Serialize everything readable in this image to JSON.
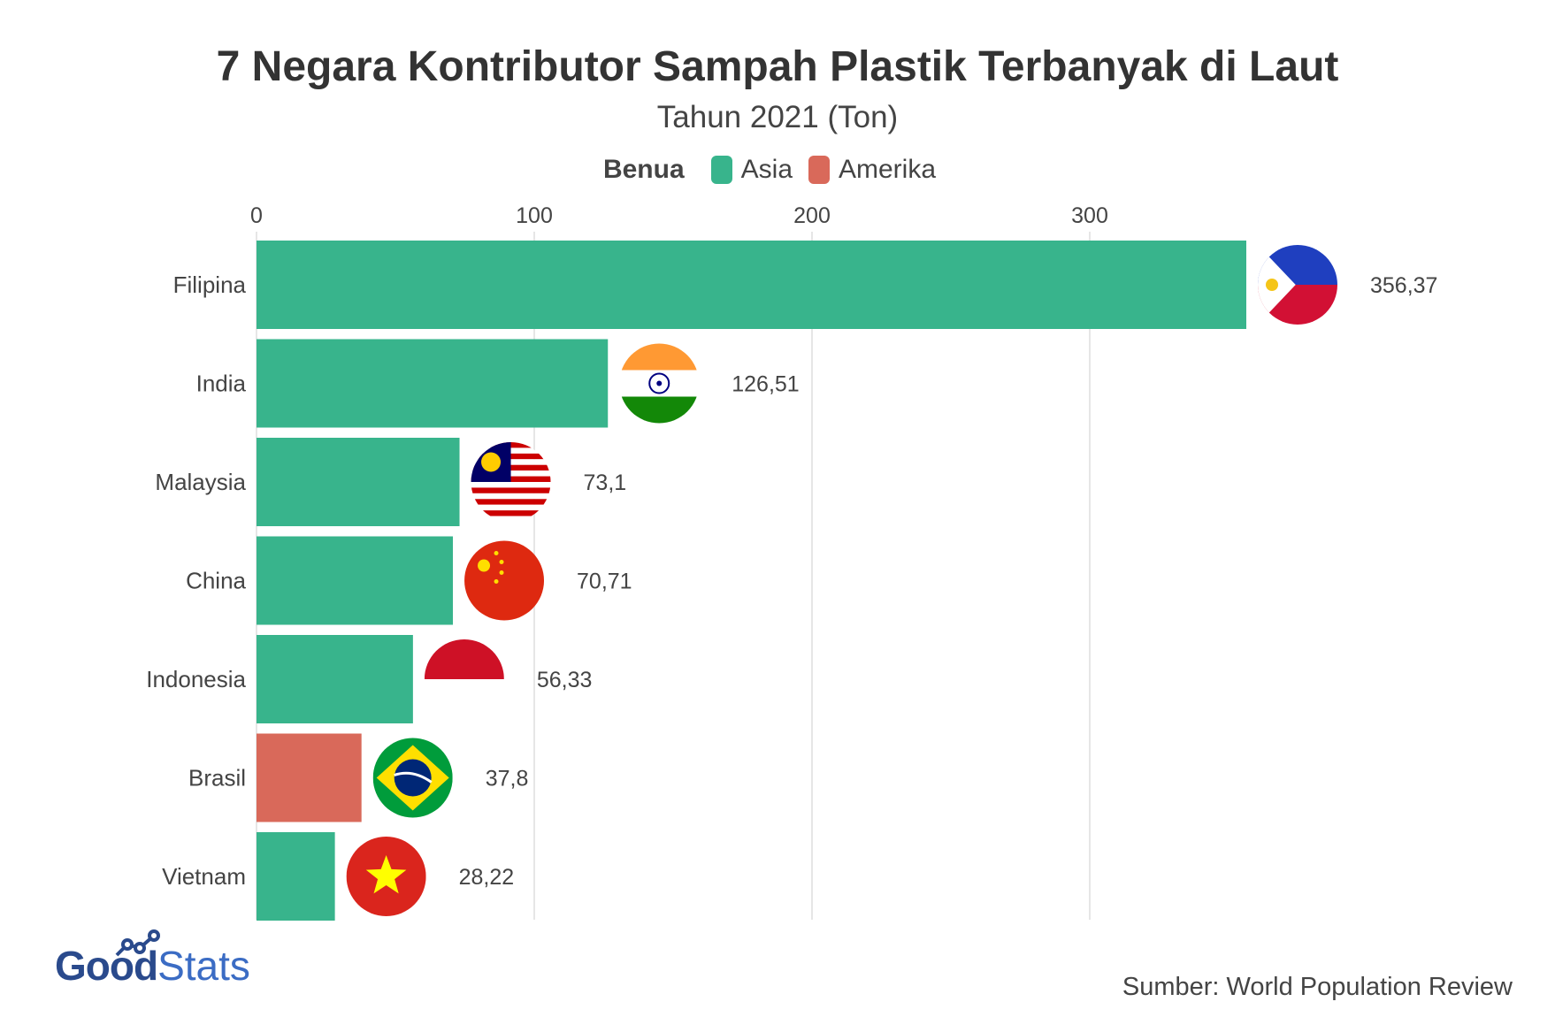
{
  "chart_data": {
    "type": "bar",
    "orientation": "horizontal",
    "title": "7 Negara Kontributor Sampah Plastik Terbanyak di Laut",
    "subtitle": "Tahun 2021 (Ton)",
    "legend": {
      "title": "Benua",
      "placement": "top-center",
      "entries": [
        {
          "name": "Asia",
          "color": "#38b48c"
        },
        {
          "name": "Amerika",
          "color": "#d9695a"
        }
      ]
    },
    "categories": [
      "Filipina",
      "India",
      "Malaysia",
      "China",
      "Indonesia",
      "Brasil",
      "Vietnam"
    ],
    "values": [
      356.37,
      126.51,
      73.1,
      70.71,
      56.33,
      37.8,
      28.22
    ],
    "value_labels": [
      "356,37",
      "126,51",
      "73,1",
      "70,71",
      "56,33",
      "37,8",
      "28,22"
    ],
    "continent": [
      "Asia",
      "Asia",
      "Asia",
      "Asia",
      "Asia",
      "Amerika",
      "Asia"
    ],
    "flags": [
      "philippines-flag-icon",
      "india-flag-icon",
      "malaysia-flag-icon",
      "china-flag-icon",
      "indonesia-flag-icon",
      "brazil-flag-icon",
      "vietnam-flag-icon"
    ],
    "x_ticks": [
      0,
      100,
      200,
      300
    ],
    "xlim": [
      0,
      400
    ],
    "xaxis_position": "top",
    "grid": true
  },
  "brand": {
    "part1": "Good",
    "part2": "Stats"
  },
  "source": "Sumber: World Population Review"
}
